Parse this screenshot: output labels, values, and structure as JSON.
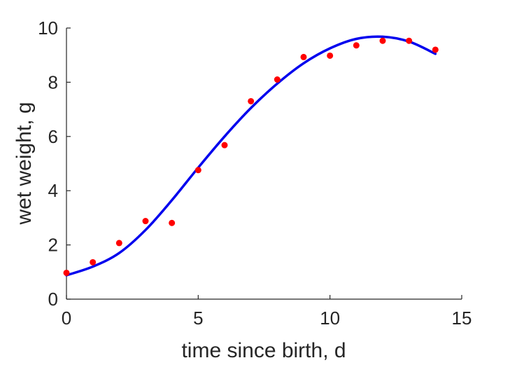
{
  "chart_data": {
    "type": "scatter",
    "title": "",
    "xlabel": "time since birth, d",
    "ylabel": "wet weight, g",
    "xlim": [
      0,
      15
    ],
    "ylim": [
      0,
      10
    ],
    "xticks": [
      0,
      5,
      10,
      15
    ],
    "yticks": [
      0,
      2,
      4,
      6,
      8,
      10
    ],
    "grid": false,
    "colors": {
      "points": "#ff0000",
      "fit": "#0000ee",
      "axes": "#262626"
    },
    "series": [
      {
        "type": "scatter",
        "x": [
          0,
          1,
          2,
          3,
          4,
          5,
          6,
          7,
          8,
          9,
          10,
          11,
          12,
          13,
          14
        ],
        "y": [
          0.97,
          1.36,
          2.07,
          2.88,
          2.81,
          4.76,
          5.68,
          7.3,
          8.1,
          8.93,
          8.98,
          9.36,
          9.53,
          9.53,
          9.2
        ]
      },
      {
        "type": "line",
        "x": [
          0,
          1,
          2,
          3,
          4,
          5,
          6,
          7,
          8,
          9,
          10,
          11,
          12,
          13,
          14
        ],
        "y": [
          0.88,
          1.2,
          1.7,
          2.55,
          3.65,
          4.85,
          6.0,
          7.05,
          7.95,
          8.7,
          9.25,
          9.6,
          9.68,
          9.5,
          9.05
        ]
      }
    ]
  }
}
